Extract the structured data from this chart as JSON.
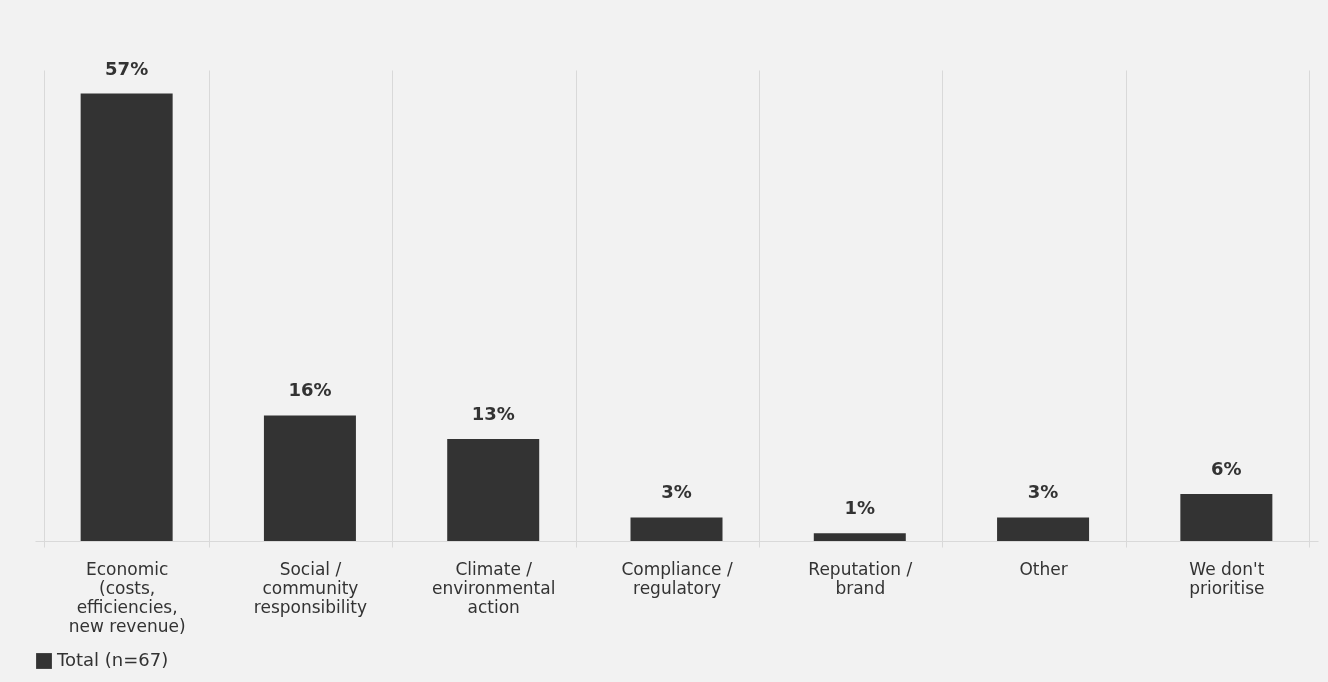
{
  "chart_data": {
    "type": "bar",
    "categories": [
      "Economic (costs, efficiencies, new revenue)",
      "Social / community responsibility",
      "Climate / environmental action",
      "Compliance / regulatory",
      "Reputation / brand",
      "Other",
      "We don't prioritise"
    ],
    "series": [
      {
        "name": "Total (n=67)",
        "color": "#333333",
        "values": [
          57,
          16,
          13,
          3,
          1,
          3,
          6
        ],
        "value_labels": [
          "57%",
          "16%",
          "13%",
          "3%",
          "1%",
          "3%",
          "6%"
        ]
      }
    ],
    "legend": "bottom",
    "grid": "x"
  }
}
